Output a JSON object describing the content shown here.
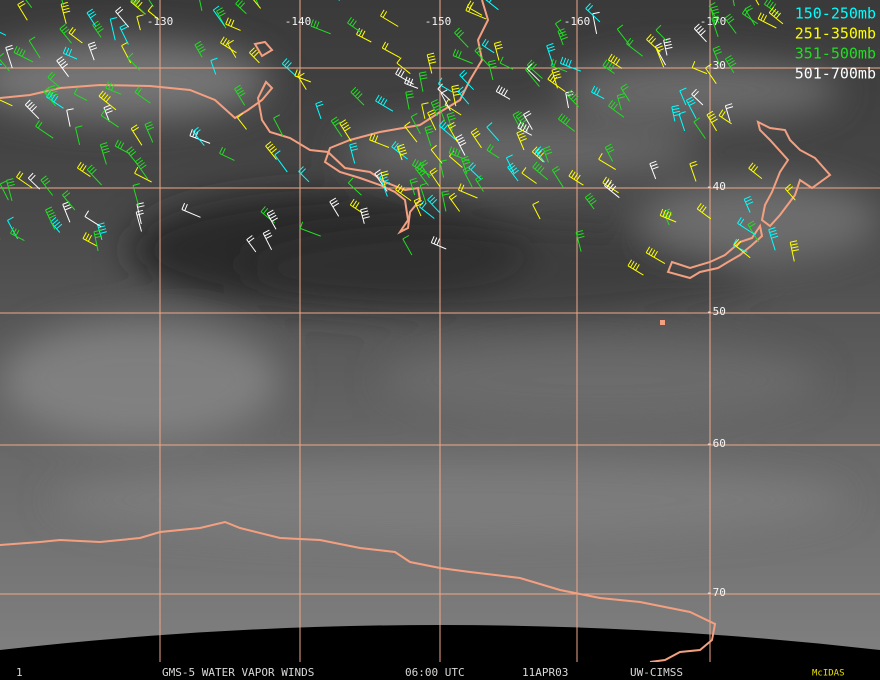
{
  "grid_labels": {
    "longitude": [
      "-130",
      "-140",
      "-150",
      "-160",
      "-170"
    ],
    "latitude": [
      "-30",
      "-40",
      "-50",
      "-60",
      "-70"
    ]
  },
  "legend": [
    {
      "label": "150-250mb",
      "color": "#00ffff"
    },
    {
      "label": "251-350mb",
      "color": "#ffff00"
    },
    {
      "label": "351-500mb",
      "color": "#22dd22"
    },
    {
      "label": "501-700mb",
      "color": "#ffffff"
    }
  ],
  "footer": {
    "frame": "1",
    "title": "GMS-5 WATER VAPOR WINDS",
    "time": "06:00 UTC",
    "date": "11APR03",
    "source": "UW-CIMSS",
    "software": "McIDAS"
  }
}
